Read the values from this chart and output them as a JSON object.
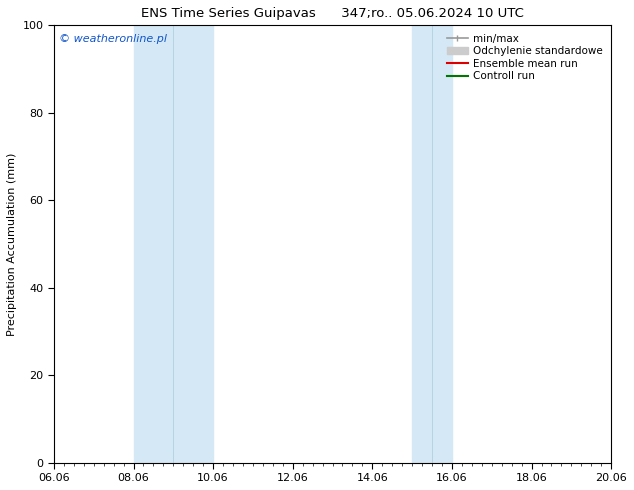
{
  "title": "ENS Time Series Guipavas      347;ro.. 05.06.2024 10 UTC",
  "ylabel": "Precipitation Accumulation (mm)",
  "ylim": [
    0,
    100
  ],
  "yticks": [
    0,
    20,
    40,
    60,
    80,
    100
  ],
  "xlim": [
    0,
    14
  ],
  "xtick_labels": [
    "06.06",
    "08.06",
    "10.06",
    "12.06",
    "14.06",
    "16.06",
    "18.06",
    "20.06"
  ],
  "xtick_positions": [
    0,
    2,
    4,
    6,
    8,
    10,
    12,
    14
  ],
  "watermark": "© weatheronline.pl",
  "watermark_color": "#1155cc",
  "bg_color": "#ffffff",
  "plot_bg_color": "#ffffff",
  "shaded_bands": [
    {
      "xmin": 2.0,
      "xmax": 3.0,
      "color": "#d8eaf7"
    },
    {
      "xmin": 3.0,
      "xmax": 4.0,
      "color": "#d8eaf7"
    },
    {
      "xmin": 9.0,
      "xmax": 10.0,
      "color": "#d8eaf7"
    },
    {
      "xmin": 10.0,
      "xmax": 10.5,
      "color": "#d8eaf7"
    }
  ],
  "legend_entries": [
    {
      "label": "min/max",
      "color": "#999999",
      "lw": 1.2,
      "type": "line"
    },
    {
      "label": "Odchylenie standardowe",
      "color": "#cccccc",
      "lw": 8,
      "type": "line"
    },
    {
      "label": "Ensemble mean run",
      "color": "#dd0000",
      "lw": 1.2,
      "type": "line"
    },
    {
      "label": "Controll run",
      "color": "#007700",
      "lw": 1.2,
      "type": "line"
    }
  ],
  "title_fontsize": 9.5,
  "axis_fontsize": 8,
  "tick_fontsize": 8,
  "legend_fontsize": 7.5
}
